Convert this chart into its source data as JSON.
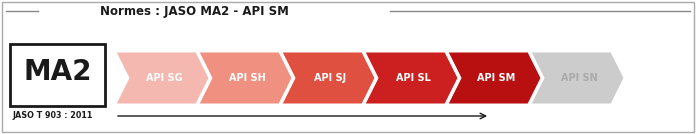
{
  "title": "Normes : JASO MA2 - API SM",
  "ma2_label": "MA2",
  "jaso_label": "JASO T 903 : 2011",
  "arrows": [
    {
      "label": "API SG",
      "color": "#f5b8b0",
      "text_color": "#ffffff"
    },
    {
      "label": "API SH",
      "color": "#f09080",
      "text_color": "#ffffff"
    },
    {
      "label": "API SJ",
      "color": "#e05040",
      "text_color": "#ffffff"
    },
    {
      "label": "API SL",
      "color": "#cc2020",
      "text_color": "#ffffff"
    },
    {
      "label": "API SM",
      "color": "#b81010",
      "text_color": "#ffffff"
    },
    {
      "label": "API SN",
      "color": "#cccccc",
      "text_color": "#aaaaaa"
    }
  ],
  "bg_color": "#ffffff",
  "border_color": "#aaaaaa",
  "title_color": "#1a1a1a",
  "ma2_text_color": "#1a1a1a",
  "jaso_text_color": "#1a1a1a",
  "arrow_line_color": "#1a1a1a",
  "title_line_color": "#888888",
  "fig_width": 6.96,
  "fig_height": 1.34,
  "dpi": 100
}
